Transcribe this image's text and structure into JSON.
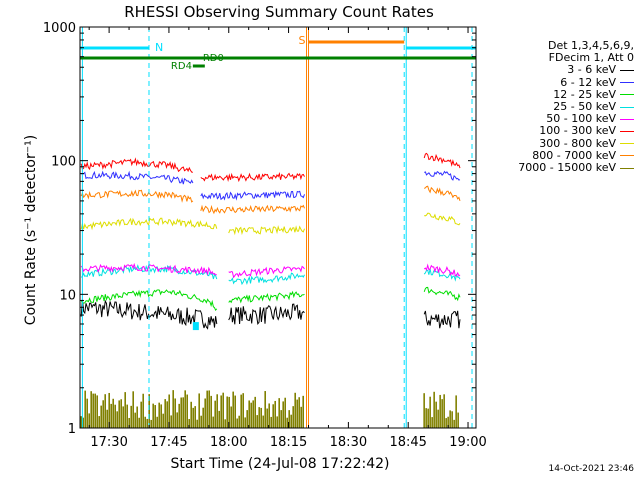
{
  "chart_data": {
    "type": "line",
    "title": "RHESSI Observing Summary Count Rates",
    "xlabel": "Start Time (24-Jul-08 17:22:42)",
    "ylabel": "Count Rate (s⁻¹ detector⁻¹)",
    "x_ticks": [
      "17:30",
      "17:45",
      "18:00",
      "18:15",
      "18:30",
      "18:45",
      "19:00"
    ],
    "x_tick_minutes": [
      30,
      45,
      60,
      75,
      90,
      105,
      120
    ],
    "x_range_minutes": [
      22.7,
      122
    ],
    "y_scale": "log",
    "y_ticks": [
      "1",
      "10",
      "100",
      "1000"
    ],
    "y_range": [
      1,
      1000
    ],
    "legend_header": [
      "Det 1,3,4,5,6,9,",
      "FDecim 1, Att 0"
    ],
    "series": [
      {
        "name": "3 - 6 keV",
        "color": "#000000",
        "segments": [
          [
            [
              23,
              8
            ],
            [
              36,
              7.5
            ],
            [
              45,
              7
            ],
            [
              55,
              6.5
            ],
            [
              57,
              6
            ]
          ],
          [
            [
              60,
              7
            ],
            [
              70,
              7
            ],
            [
              79,
              7.3
            ]
          ],
          [
            [
              109,
              6.5
            ],
            [
              115,
              6.5
            ],
            [
              118,
              6.5
            ]
          ]
        ]
      },
      {
        "name": "6 - 12 keV",
        "color": "#3030ff",
        "segments": [
          [
            [
              23,
              78
            ],
            [
              35,
              77
            ],
            [
              45,
              73
            ],
            [
              51,
              68
            ]
          ],
          [
            [
              53,
              54
            ],
            [
              64,
              55
            ],
            [
              79,
              56
            ]
          ],
          [
            [
              109,
              82
            ],
            [
              115,
              78
            ],
            [
              118,
              72
            ]
          ]
        ]
      },
      {
        "name": "12 - 25 keV",
        "color": "#00dd00",
        "segments": [
          [
            [
              23,
              9
            ],
            [
              36,
              10
            ],
            [
              45,
              10.5
            ],
            [
              55,
              9
            ],
            [
              57,
              7.8
            ]
          ],
          [
            [
              60,
              9
            ],
            [
              70,
              9.5
            ],
            [
              79,
              10
            ]
          ],
          [
            [
              109,
              11
            ],
            [
              115,
              10
            ],
            [
              118,
              9.5
            ]
          ]
        ]
      },
      {
        "name": "25 - 50 keV",
        "color": "#00e0e0",
        "segments": [
          [
            [
              23,
              14
            ],
            [
              36,
              15.5
            ],
            [
              45,
              15.5
            ],
            [
              55,
              14
            ],
            [
              57,
              13
            ]
          ],
          [
            [
              60,
              12.5
            ],
            [
              70,
              13
            ],
            [
              79,
              14
            ]
          ],
          [
            [
              109,
              15
            ],
            [
              115,
              14
            ],
            [
              118,
              13
            ]
          ]
        ]
      },
      {
        "name": "50 - 100 keV",
        "color": "#ff00ff",
        "segments": [
          [
            [
              23,
              15.5
            ],
            [
              36,
              16
            ],
            [
              45,
              15.5
            ],
            [
              55,
              15
            ],
            [
              57,
              14
            ]
          ],
          [
            [
              60,
              14
            ],
            [
              70,
              15
            ],
            [
              79,
              15.5
            ]
          ],
          [
            [
              109,
              16
            ],
            [
              115,
              15
            ],
            [
              118,
              14
            ]
          ]
        ]
      },
      {
        "name": "100 - 300 keV",
        "color": "#ff0000",
        "segments": [
          [
            [
              23,
              90
            ],
            [
              36,
              98
            ],
            [
              45,
              92
            ],
            [
              51,
              82
            ]
          ],
          [
            [
              53,
              75
            ],
            [
              64,
              75
            ],
            [
              79,
              76
            ]
          ],
          [
            [
              109,
              110
            ],
            [
              115,
              100
            ],
            [
              118,
              88
            ]
          ]
        ]
      },
      {
        "name": "300 - 800 keV",
        "color": "#dddd00",
        "segments": [
          [
            [
              23,
              32
            ],
            [
              36,
              35
            ],
            [
              45,
              35
            ],
            [
              55,
              33
            ],
            [
              57,
              31
            ]
          ],
          [
            [
              60,
              30
            ],
            [
              70,
              30
            ],
            [
              79,
              31
            ]
          ],
          [
            [
              109,
              40
            ],
            [
              115,
              37
            ],
            [
              118,
              34
            ]
          ]
        ]
      },
      {
        "name": "800 - 7000 keV",
        "color": "#ff8000",
        "segments": [
          [
            [
              23,
              55
            ],
            [
              36,
              57
            ],
            [
              45,
              56
            ],
            [
              51,
              50
            ]
          ],
          [
            [
              53,
              43
            ],
            [
              64,
              43
            ],
            [
              79,
              44
            ]
          ],
          [
            [
              109,
              62
            ],
            [
              115,
              57
            ],
            [
              118,
              50
            ]
          ]
        ]
      },
      {
        "name": "7000 - 15000 keV",
        "color": "#808000",
        "segments": [
          [
            [
              23,
              1
            ],
            [
              79,
              1
            ]
          ],
          [
            [
              109,
              1
            ],
            [
              118,
              1
            ]
          ]
        ]
      }
    ],
    "annotations": {
      "N": "N",
      "S": "S",
      "RD0": "RD0",
      "RD4": "RD4"
    }
  },
  "legend_rows": [
    {
      "label": "3 - 6 keV",
      "color": "#000000"
    },
    {
      "label": "6 - 12 keV",
      "color": "#3030ff"
    },
    {
      "label": "12 - 25 keV",
      "color": "#00dd00"
    },
    {
      "label": "25 - 50 keV",
      "color": "#00e0e0"
    },
    {
      "label": "50 - 100 keV",
      "color": "#ff00ff"
    },
    {
      "label": "100 - 300 keV",
      "color": "#ff0000"
    },
    {
      "label": "300 - 800 keV",
      "color": "#dddd00"
    },
    {
      "label": "800 - 7000 keV",
      "color": "#ff8000"
    },
    {
      "label": "7000 - 15000 keV",
      "color": "#808000"
    }
  ],
  "timestamp": "14-Oct-2021 23:46"
}
